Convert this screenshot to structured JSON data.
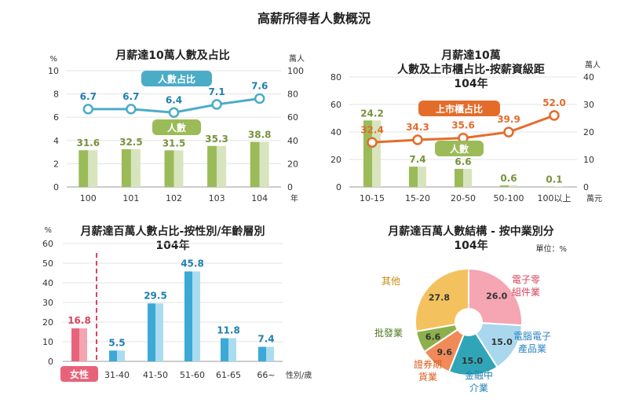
{
  "title": "高薪所得者人數概況",
  "colors": {
    "bar_green": "#9BBB59",
    "bar_green_light": "#D7E4BD",
    "line_blue": "#4BACC6",
    "line_orange": "#E46C2B",
    "bar_blue": "#3CA9D6",
    "bar_blue_light": "#A9DCF0",
    "bar_red": "#E8637A",
    "label_green": "#77933C",
    "label_blue": "#1F7FB0"
  },
  "chart_data": [
    {
      "type": "bar+line",
      "title": "月薪達10萬人數及占比",
      "left_axis_unit": "%",
      "right_axis_unit": "萬人",
      "xlabel_unit": "年",
      "categories": [
        "100",
        "101",
        "102",
        "103",
        "104"
      ],
      "left_ylim": [
        0,
        10
      ],
      "left_ticks": [
        "0",
        "2",
        "4",
        "6",
        "8",
        "10"
      ],
      "right_ylim": [
        0,
        100
      ],
      "right_ticks": [
        "0",
        "20",
        "40",
        "60",
        "80",
        "100"
      ],
      "series": [
        {
          "name": "人數",
          "kind": "bar",
          "axis": "right",
          "values": [
            31.6,
            32.5,
            31.5,
            35.3,
            38.8
          ],
          "labels": [
            "31.6",
            "32.5",
            "31.5",
            "35.3",
            "38.8"
          ]
        },
        {
          "name": "人數占比",
          "kind": "line",
          "axis": "left",
          "values": [
            6.7,
            6.7,
            6.4,
            7.1,
            7.6
          ],
          "labels": [
            "6.7",
            "6.7",
            "6.4",
            "7.1",
            "7.6"
          ]
        }
      ]
    },
    {
      "type": "bar+line",
      "title_lines": [
        "月薪達10萬",
        "人數及上市櫃占比-按薪資級距",
        "104年"
      ],
      "left_axis_unit": "",
      "right_axis_unit": "萬人",
      "xlabel_unit": "萬元",
      "categories": [
        "10-15",
        "15-20",
        "20-50",
        "50-100",
        "100以上"
      ],
      "left_ylim": [
        0,
        80
      ],
      "left_ticks": [
        "0",
        "20",
        "40",
        "60",
        "80"
      ],
      "right_ylim": [
        0,
        40
      ],
      "right_ticks": [
        "0",
        "10",
        "20",
        "30",
        "40"
      ],
      "series": [
        {
          "name": "人數",
          "kind": "bar",
          "axis": "right",
          "values": [
            24.2,
            7.4,
            6.6,
            0.6,
            0.1
          ],
          "labels": [
            "24.2",
            "7.4",
            "6.6",
            "0.6",
            "0.1"
          ]
        },
        {
          "name": "上市櫃占比",
          "kind": "line",
          "axis": "left",
          "values": [
            32.4,
            34.3,
            35.6,
            39.9,
            52.0
          ],
          "labels": [
            "32.4",
            "34.3",
            "35.6",
            "39.9",
            "52.0"
          ]
        }
      ]
    },
    {
      "type": "bar",
      "title_lines": [
        "月薪達百萬人數占比-按性別/年齡層別",
        "104年"
      ],
      "left_axis_unit": "%",
      "xlabel_unit": "性別/歲",
      "ylim": [
        0,
        60
      ],
      "ticks": [
        "0",
        "10",
        "20",
        "30",
        "40",
        "50",
        "60"
      ],
      "categories": [
        "女性",
        "31-40",
        "41-50",
        "51-60",
        "61-65",
        "66~"
      ],
      "values": [
        16.8,
        5.5,
        29.5,
        45.8,
        11.8,
        7.4
      ],
      "labels": [
        "16.8",
        "5.5",
        "29.5",
        "45.8",
        "11.8",
        "7.4"
      ]
    },
    {
      "type": "pie",
      "title_lines": [
        "月薪達百萬人數結構 - 按中業別分",
        "104年"
      ],
      "unit_note": "單位：%",
      "slices": [
        {
          "name": "電子零組件業",
          "label_lines": [
            "電子零",
            "組件業"
          ],
          "value": 26.0,
          "value_label": "26.0",
          "color": "#F6A5B3",
          "label_color": "#D9455E"
        },
        {
          "name": "電腦電子產品業",
          "label_lines": [
            "電腦電子",
            "產品業"
          ],
          "value": 15.0,
          "value_label": "15.0",
          "color": "#A9D8EE",
          "label_color": "#2E86C1"
        },
        {
          "name": "金融中介業",
          "label_lines": [
            "金融中",
            "介業"
          ],
          "value": 15.0,
          "value_label": "15.0",
          "color": "#30A5B8",
          "label_color": "#1F7FB0"
        },
        {
          "name": "證券期貨業",
          "label_lines": [
            "證券期",
            "貨業"
          ],
          "value": 9.6,
          "value_label": "9.6",
          "color": "#F08A58",
          "label_color": "#D95F20"
        },
        {
          "name": "批發業",
          "label_lines": [
            "批發業"
          ],
          "value": 6.6,
          "value_label": "6.6",
          "color": "#8DB04D",
          "label_color": "#4F7A1F"
        },
        {
          "name": "其他",
          "label_lines": [
            "其他"
          ],
          "value": 27.8,
          "value_label": "27.8",
          "color": "#F3C25E",
          "label_color": "#C98A10"
        }
      ]
    }
  ]
}
